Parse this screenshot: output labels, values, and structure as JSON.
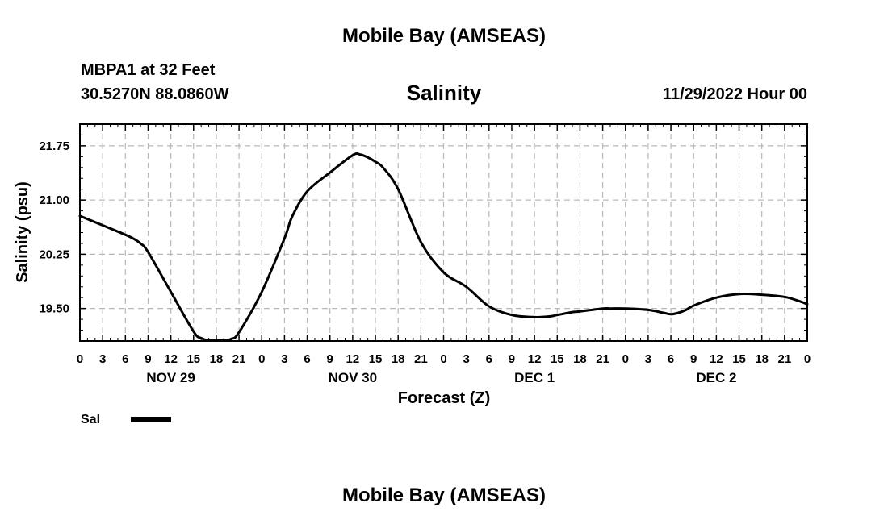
{
  "header": {
    "top_title": "Mobile Bay (AMSEAS)",
    "station_line": "MBPA1 at 32 Feet",
    "coords_line": "30.5270N  88.0860W",
    "run_time": "11/29/2022 Hour 00",
    "bottom_title": "Mobile Bay (AMSEAS)"
  },
  "chart_data": {
    "type": "line",
    "title": "Salinity",
    "xlabel": "Forecast (Z)",
    "ylabel": "Salinity (psu)",
    "x_unit": "forecast hour",
    "xlim": [
      0,
      96
    ],
    "ylim": [
      19.05,
      22.05
    ],
    "y_ticks": [
      19.5,
      20.25,
      21.0,
      21.75
    ],
    "y_tick_labels": [
      "19.50",
      "20.25",
      "21.00",
      "21.75"
    ],
    "x_ticks": [
      0,
      3,
      6,
      9,
      12,
      15,
      18,
      21,
      24,
      27,
      30,
      33,
      36,
      39,
      42,
      45,
      48,
      51,
      54,
      57,
      60,
      63,
      66,
      69,
      72,
      75,
      78,
      81,
      84,
      87,
      90,
      93,
      96
    ],
    "x_tick_labels": [
      "0",
      "3",
      "6",
      "9",
      "12",
      "15",
      "18",
      "21",
      "0",
      "3",
      "6",
      "9",
      "12",
      "15",
      "18",
      "21",
      "0",
      "3",
      "6",
      "9",
      "12",
      "15",
      "18",
      "21",
      "0",
      "3",
      "6",
      "9",
      "12",
      "15",
      "18",
      "21",
      "0"
    ],
    "day_labels": [
      {
        "hour": 12,
        "label": "NOV 29"
      },
      {
        "hour": 36,
        "label": "NOV 30"
      },
      {
        "hour": 60,
        "label": "DEC 1"
      },
      {
        "hour": 84,
        "label": "DEC 2"
      }
    ],
    "grid": true,
    "legend_position": "bottom-left",
    "series": [
      {
        "name": "Sal",
        "color": "#000000",
        "x": [
          0,
          3,
          6,
          7,
          8,
          9,
          12,
          15,
          16,
          17,
          18,
          19,
          20,
          21,
          24,
          27,
          28,
          30,
          33,
          36,
          37,
          38,
          39,
          40,
          42,
          45,
          48,
          51,
          54,
          57,
          60,
          62,
          63,
          65,
          66,
          69,
          70,
          72,
          75,
          77,
          78,
          79,
          80,
          81,
          84,
          87,
          90,
          93,
          95,
          96
        ],
        "y": [
          20.78,
          20.65,
          20.52,
          20.47,
          20.4,
          20.28,
          19.73,
          19.18,
          19.09,
          19.06,
          19.06,
          19.06,
          19.08,
          19.17,
          19.73,
          20.47,
          20.77,
          21.12,
          21.38,
          21.62,
          21.63,
          21.59,
          21.53,
          21.45,
          21.15,
          20.42,
          20.0,
          19.8,
          19.53,
          19.41,
          19.38,
          19.39,
          19.41,
          19.45,
          19.46,
          19.5,
          19.5,
          19.5,
          19.48,
          19.44,
          19.42,
          19.44,
          19.48,
          19.54,
          19.65,
          19.7,
          19.69,
          19.66,
          19.6,
          19.56
        ]
      }
    ]
  }
}
